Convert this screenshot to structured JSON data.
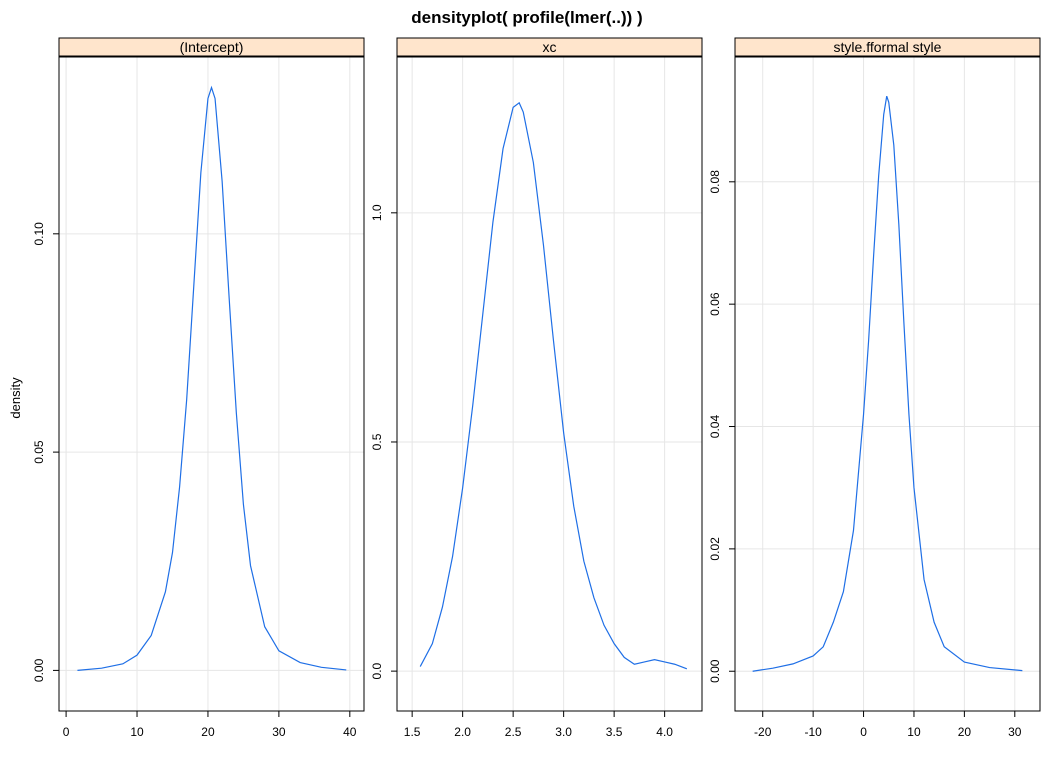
{
  "title": "densityplot( profile(lmer(..)) )",
  "ylabel": "density",
  "colors": {
    "curve": "#1f6fe6",
    "strip": "#ffe5cc",
    "grid": "#e6e6e6",
    "frame": "#000000"
  },
  "chart_data": [
    {
      "type": "line",
      "panel": "(Intercept)",
      "xlim": [
        -1,
        42
      ],
      "ylim": [
        -0.0093,
        0.1405
      ],
      "xticks": [
        0,
        10,
        20,
        30,
        40
      ],
      "xtick_labels": [
        "0",
        "10",
        "20",
        "30",
        "40"
      ],
      "yticks": [
        0,
        0.05,
        0.1
      ],
      "ytick_labels": [
        "0.00",
        "0.05",
        "0.10"
      ],
      "grid": true,
      "series": [
        {
          "x": [
            1.6,
            5,
            8,
            10,
            12,
            14,
            15,
            16,
            17,
            18,
            19,
            20,
            20.5,
            21,
            22,
            23,
            24,
            25,
            26,
            28,
            30,
            33,
            36,
            39.5
          ],
          "y": [
            0.0,
            0.0005,
            0.0015,
            0.0035,
            0.008,
            0.018,
            0.027,
            0.042,
            0.062,
            0.088,
            0.114,
            0.131,
            0.1335,
            0.131,
            0.112,
            0.085,
            0.059,
            0.038,
            0.024,
            0.01,
            0.0045,
            0.0018,
            0.0007,
            0.0001
          ]
        }
      ]
    },
    {
      "type": "line",
      "panel": "xc",
      "xlim": [
        1.35,
        4.37
      ],
      "ylim": [
        -0.087,
        1.34
      ],
      "xticks": [
        1.5,
        2.0,
        2.5,
        3.0,
        3.5,
        4.0
      ],
      "xtick_labels": [
        "1.5",
        "2.0",
        "2.5",
        "3.0",
        "3.5",
        "4.0"
      ],
      "yticks": [
        0,
        0.5,
        1.0
      ],
      "ytick_labels": [
        "0.0",
        "0.5",
        "1.0"
      ],
      "grid": true,
      "series": [
        {
          "x": [
            1.58,
            1.7,
            1.8,
            1.9,
            2.0,
            2.1,
            2.2,
            2.3,
            2.4,
            2.5,
            2.56,
            2.6,
            2.7,
            2.8,
            2.9,
            3.0,
            3.1,
            3.2,
            3.3,
            3.4,
            3.5,
            3.6,
            3.7,
            3.8,
            3.9,
            4.0,
            4.1,
            4.22
          ],
          "y": [
            0.01,
            0.06,
            0.14,
            0.25,
            0.4,
            0.58,
            0.78,
            0.98,
            1.14,
            1.23,
            1.24,
            1.22,
            1.11,
            0.93,
            0.72,
            0.52,
            0.36,
            0.24,
            0.16,
            0.1,
            0.06,
            0.03,
            0.015,
            0.02,
            0.025,
            0.02,
            0.015,
            0.005
          ]
        }
      ]
    },
    {
      "type": "line",
      "panel": "style.fformal style",
      "xlim": [
        -25.5,
        35
      ],
      "ylim": [
        -0.0065,
        0.1004
      ],
      "xticks": [
        -20,
        -10,
        0,
        10,
        20,
        30
      ],
      "xtick_labels": [
        "-20",
        "-10",
        "0",
        "10",
        "20",
        "30"
      ],
      "yticks": [
        0,
        0.02,
        0.04,
        0.06,
        0.08
      ],
      "ytick_labels": [
        "0.00",
        "0.02",
        "0.04",
        "0.06",
        "0.08"
      ],
      "grid": true,
      "series": [
        {
          "x": [
            -22,
            -18,
            -14,
            -10,
            -8,
            -6,
            -4,
            -2,
            0,
            1,
            2,
            3,
            4,
            4.6,
            5,
            6,
            7,
            8,
            9,
            10,
            12,
            14,
            16,
            20,
            25,
            31.5
          ],
          "y": [
            0.0,
            0.0005,
            0.0012,
            0.0025,
            0.004,
            0.008,
            0.013,
            0.023,
            0.042,
            0.054,
            0.068,
            0.081,
            0.091,
            0.094,
            0.093,
            0.086,
            0.073,
            0.057,
            0.042,
            0.03,
            0.015,
            0.008,
            0.004,
            0.0015,
            0.0006,
            0.0001
          ]
        }
      ]
    }
  ]
}
